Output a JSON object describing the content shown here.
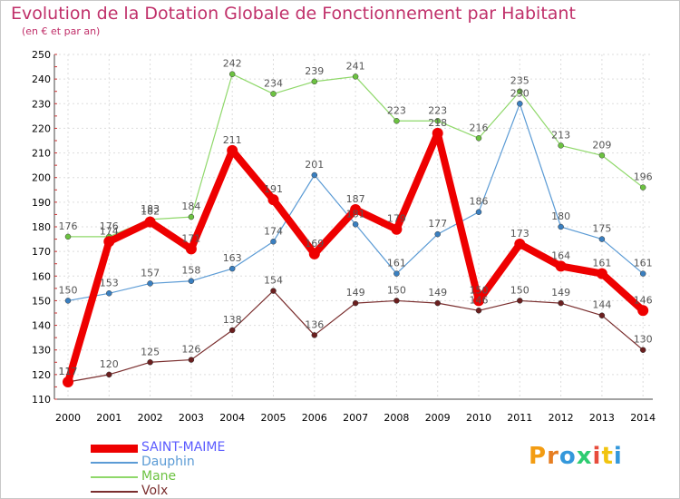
{
  "title": "Evolution de la Dotation Globale de Fonctionnement par Habitant",
  "subtitle": "(en € et par an)",
  "brand": {
    "letters": [
      "P",
      "r",
      "o",
      "x",
      "i",
      "t",
      "i"
    ],
    "colors": [
      "#f39c12",
      "#e67e22",
      "#3498db",
      "#2ecc71",
      "#e74c3c",
      "#f1c40f",
      "#3498db"
    ]
  },
  "chart_data": {
    "type": "line",
    "x": [
      "2000",
      "2001",
      "2002",
      "2003",
      "2004",
      "2005",
      "2006",
      "2007",
      "2008",
      "2009",
      "2010",
      "2011",
      "2012",
      "2013",
      "2014"
    ],
    "ylim": [
      110,
      250
    ],
    "yticks": [
      110,
      120,
      130,
      140,
      150,
      160,
      170,
      180,
      190,
      200,
      210,
      220,
      230,
      240,
      250
    ],
    "grid": true,
    "legend_position": "bottom-left",
    "series": [
      {
        "name": "Dauphin",
        "color": "#5b9bd5",
        "marker": "#3a7fc0",
        "width": 1.2,
        "radius": 3,
        "values": [
          150,
          153,
          157,
          158,
          163,
          174,
          201,
          181,
          161,
          177,
          186,
          230,
          180,
          175,
          161
        ],
        "labels": [
          "150",
          "153",
          "157",
          "158",
          "163",
          "174",
          "201",
          "181",
          "161",
          "177",
          "186",
          "230",
          "180",
          "175",
          "161"
        ]
      },
      {
        "name": "Mane",
        "color": "#8fd86a",
        "marker": "#6cc241",
        "width": 1.2,
        "radius": 3,
        "values": [
          176,
          176,
          183,
          184,
          242,
          234,
          239,
          241,
          223,
          223,
          216,
          235,
          213,
          209,
          196
        ],
        "labels": [
          "176",
          "176",
          "183",
          "184",
          "242",
          "234",
          "239",
          "241",
          "223",
          "223",
          "216",
          "235",
          "213",
          "209",
          "196"
        ]
      },
      {
        "name": "Volx",
        "color": "#7a2e2e",
        "marker": "#6b1f1f",
        "width": 1.2,
        "radius": 3,
        "values": [
          117,
          120,
          125,
          126,
          138,
          154,
          136,
          149,
          150,
          149,
          146,
          150,
          149,
          144,
          130
        ],
        "labels": [
          "117",
          "120",
          "125",
          "126",
          "138",
          "154",
          "136",
          "149",
          "150",
          "149",
          "146",
          "150",
          "149",
          "144",
          "130"
        ]
      },
      {
        "name": "SAINT-MAIME",
        "color": "#ee0000",
        "marker": "#ee0000",
        "width": 8,
        "radius": 6,
        "values": [
          117,
          174,
          182,
          171,
          211,
          191,
          169,
          187,
          179,
          218,
          150,
          173,
          164,
          161,
          146
        ],
        "labels": [
          "117",
          "174",
          "182",
          "171",
          "211",
          "191",
          "169",
          "187",
          "179",
          "218",
          "150",
          "173",
          "164",
          "161",
          "146"
        ]
      }
    ],
    "legend": [
      {
        "name": "SAINT-MAIME",
        "text_color": "#5b5bff",
        "line_color": "#ee0000",
        "thick": true
      },
      {
        "name": "Dauphin",
        "text_color": "#5b9bd5",
        "line_color": "#5b9bd5",
        "thick": false
      },
      {
        "name": "Mane",
        "text_color": "#6cc241",
        "line_color": "#8fd86a",
        "thick": false
      },
      {
        "name": "Volx",
        "text_color": "#7a2e2e",
        "line_color": "#7a2e2e",
        "thick": false
      }
    ]
  }
}
